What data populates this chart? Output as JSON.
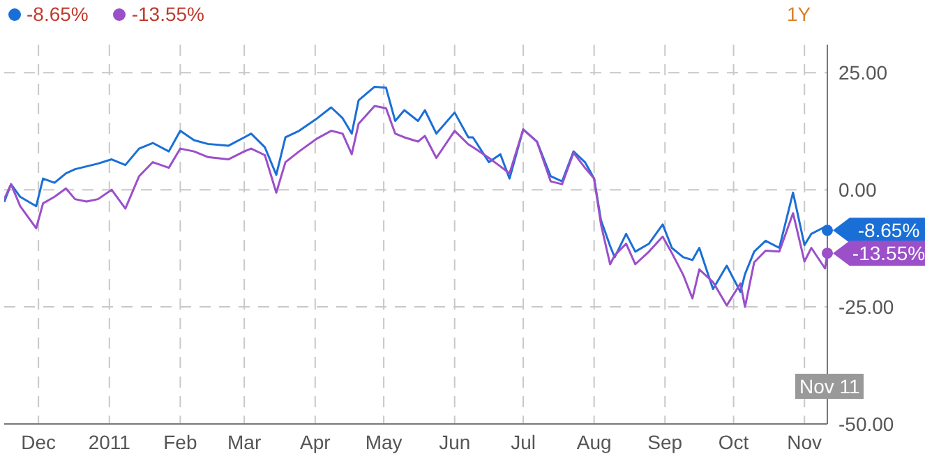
{
  "chart_data": {
    "type": "line",
    "x": [
      "2010-11-16",
      "2010-11-19",
      "2010-11-23",
      "2010-11-30",
      "2010-12-03",
      "2010-12-08",
      "2010-12-13",
      "2010-12-17",
      "2010-12-22",
      "2010-12-27",
      "2011-01-02",
      "2011-01-08",
      "2011-01-14",
      "2011-01-20",
      "2011-01-27",
      "2011-02-01",
      "2011-02-07",
      "2011-02-13",
      "2011-02-22",
      "2011-03-01",
      "2011-03-04",
      "2011-03-10",
      "2011-03-15",
      "2011-03-19",
      "2011-03-25",
      "2011-04-02",
      "2011-04-08",
      "2011-04-13",
      "2011-04-17",
      "2011-04-20",
      "2011-04-27",
      "2011-05-02",
      "2011-05-06",
      "2011-05-10",
      "2011-05-16",
      "2011-05-19",
      "2011-05-24",
      "2011-06-01",
      "2011-06-07",
      "2011-06-09",
      "2011-06-16",
      "2011-06-21",
      "2011-06-25",
      "2011-07-01",
      "2011-07-07",
      "2011-07-13",
      "2011-07-18",
      "2011-07-23",
      "2011-07-28",
      "2011-08-01",
      "2011-08-04",
      "2011-08-08",
      "2011-08-10",
      "2011-08-15",
      "2011-08-19",
      "2011-08-25",
      "2011-08-31",
      "2011-09-04",
      "2011-09-09",
      "2011-09-13",
      "2011-09-16",
      "2011-09-22",
      "2011-09-28",
      "2011-10-04",
      "2011-10-06",
      "2011-10-10",
      "2011-10-15",
      "2011-10-21",
      "2011-10-27",
      "2011-11-01",
      "2011-11-04",
      "2011-11-10",
      "2011-11-11"
    ],
    "series": [
      {
        "color": "#1a6fd6",
        "values": [
          -2.6,
          1.2,
          -1.5,
          -3.5,
          2.4,
          1.5,
          3.5,
          4.4,
          5,
          5.6,
          6.5,
          5.3,
          8.8,
          10,
          8.2,
          12.6,
          10.6,
          9.8,
          9.4,
          11.2,
          12,
          9.1,
          3.2,
          11.2,
          12.6,
          15.3,
          17.6,
          15.3,
          12,
          19.1,
          22,
          21.8,
          14.7,
          17,
          14.7,
          17,
          12,
          16.5,
          11.2,
          11.2,
          5.9,
          7.6,
          2.4,
          12.9,
          10.3,
          2.9,
          1.8,
          8.2,
          5.9,
          2.4,
          -6.5,
          -12,
          -14.4,
          -9.4,
          -13.2,
          -11.5,
          -7.4,
          -12.4,
          -14.4,
          -15,
          -12.4,
          -21.2,
          -16.2,
          -21.8,
          -18,
          -13.2,
          -10.9,
          -12.4,
          -0.6,
          -11.8,
          -9.4,
          -7.9,
          -8.65
        ]
      },
      {
        "color": "#9b4fc9",
        "values": [
          -2,
          1.2,
          -3.5,
          -8.2,
          -2.9,
          -1.5,
          0.3,
          -2,
          -2.5,
          -2,
          0,
          -4,
          2.9,
          5.9,
          4.7,
          8.8,
          8.2,
          7,
          6.5,
          8.2,
          8.8,
          7.4,
          -0.6,
          5.9,
          8.2,
          11,
          12.6,
          12,
          7.6,
          14.1,
          17.9,
          17.4,
          12,
          11.2,
          10.3,
          11.5,
          6.8,
          12.6,
          9.7,
          9.1,
          6.8,
          5,
          3.5,
          12.9,
          10.3,
          1.8,
          1.2,
          7.9,
          4.7,
          2.4,
          -7.4,
          -15.9,
          -14,
          -11.5,
          -15.9,
          -13.2,
          -10,
          -13.5,
          -18.2,
          -23.2,
          -17,
          -19.7,
          -24.7,
          -20,
          -25,
          -15.5,
          -13,
          -13.2,
          -5,
          -15.3,
          -12.4,
          -16.8,
          -13.55
        ]
      }
    ],
    "xlim": [
      "2010-11-16",
      "2011-11-11"
    ],
    "xticks": [
      {
        "value": "2010-12-01",
        "label": "Dec"
      },
      {
        "value": "2011-01-01",
        "label": "2011"
      },
      {
        "value": "2011-02-01",
        "label": "Feb"
      },
      {
        "value": "2011-03-01",
        "label": "Mar"
      },
      {
        "value": "2011-04-01",
        "label": "Apr"
      },
      {
        "value": "2011-05-01",
        "label": "May"
      },
      {
        "value": "2011-06-01",
        "label": "Jun"
      },
      {
        "value": "2011-07-01",
        "label": "Jul"
      },
      {
        "value": "2011-08-01",
        "label": "Aug"
      },
      {
        "value": "2011-09-01",
        "label": "Sep"
      },
      {
        "value": "2011-10-01",
        "label": "Oct"
      },
      {
        "value": "2011-11-01",
        "label": "Nov"
      }
    ],
    "ylim": [
      -50,
      31
    ],
    "yticks": [
      {
        "value": -50,
        "label": "-50.00"
      },
      {
        "value": -25,
        "label": "-25.00"
      },
      {
        "value": 0,
        "label": "0.00"
      },
      {
        "value": 25,
        "label": "25.00"
      }
    ],
    "grid": true,
    "marker": "none",
    "line_style": "solid",
    "annotations": [
      {
        "text": "-8.65%",
        "x": "2011-11-11",
        "y": -8.65
      },
      {
        "text": "-13.55%",
        "x": "2011-11-11",
        "y": -13.55
      },
      "1Y",
      "Nov 11"
    ]
  }
}
